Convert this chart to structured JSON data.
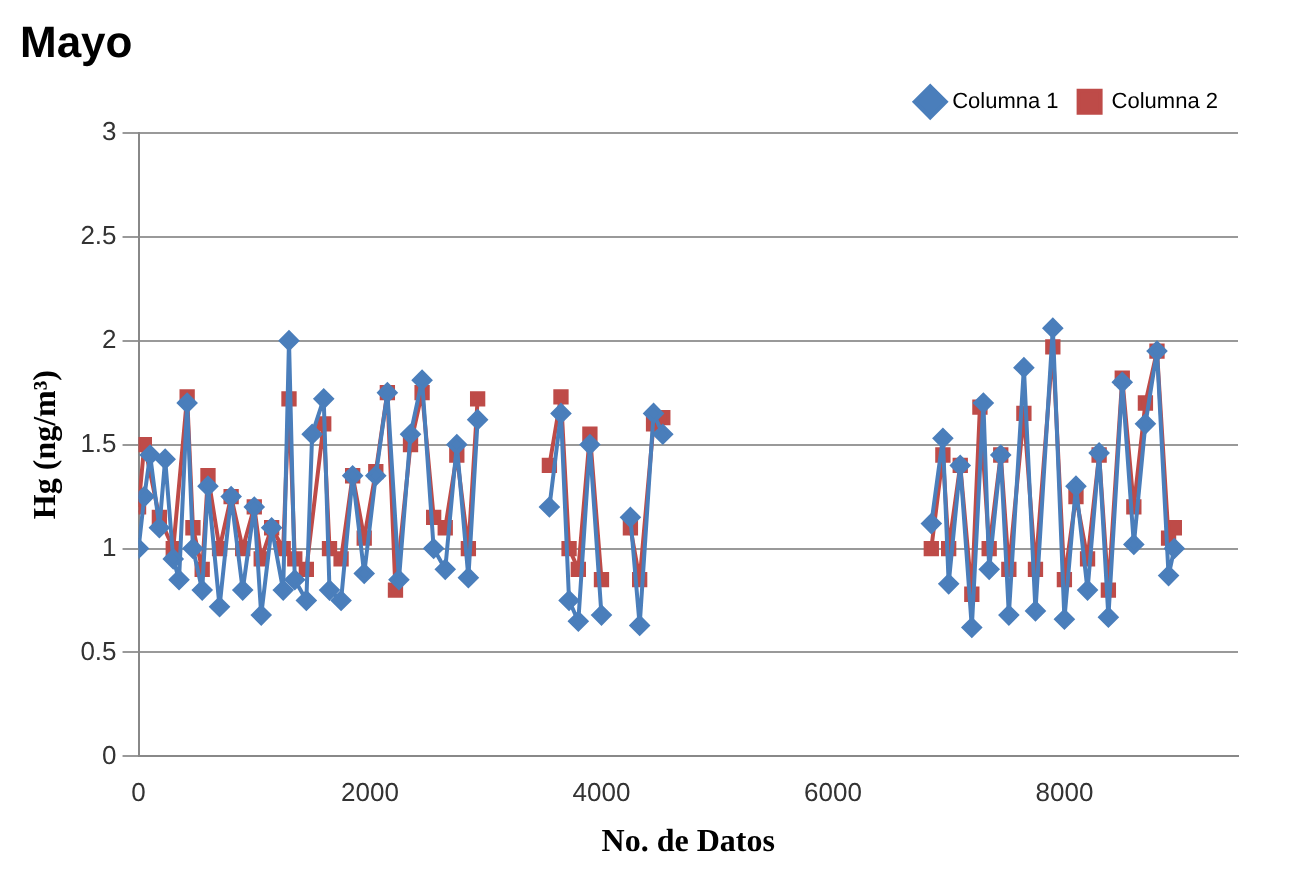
{
  "chart_data": {
    "type": "line",
    "title": "Mayo",
    "xlabel": "No. de Datos",
    "ylabel": "Hg (ng/m³)",
    "xlim": [
      0,
      9500
    ],
    "xticks": [
      0,
      2000,
      4000,
      6000,
      8000
    ],
    "ylim": [
      0,
      3
    ],
    "yticks": [
      0,
      0.5,
      1,
      1.5,
      2,
      2.5,
      3
    ],
    "grid": "y",
    "legend": "top right",
    "line_style": "solid",
    "series": [
      {
        "name": "Columna 1",
        "color": "#4a7ebb",
        "marker": "diamond",
        "x": [
          0,
          50,
          100,
          180,
          230,
          300,
          350,
          420,
          470,
          550,
          600,
          700,
          800,
          900,
          1000,
          1060,
          1150,
          1250,
          1300,
          1350,
          1450,
          1500,
          1600,
          1650,
          1750,
          1850,
          1950,
          2050,
          2150,
          2250,
          2350,
          2450,
          2550,
          2650,
          2750,
          2850,
          2930,
          3200,
          3550,
          3650,
          3720,
          3800,
          3900,
          4000,
          4150,
          4250,
          4330,
          4450,
          4530,
          5700,
          6850,
          6950,
          7000,
          7100,
          7200,
          7300,
          7350,
          7450,
          7520,
          7650,
          7750,
          7900,
          8000,
          8100,
          8200,
          8300,
          8380,
          8500,
          8600,
          8700,
          8800,
          8900,
          8950
        ],
        "values": [
          1.0,
          1.25,
          1.45,
          1.1,
          1.43,
          0.95,
          0.85,
          1.7,
          1.0,
          0.8,
          1.3,
          0.72,
          1.25,
          0.8,
          1.2,
          0.68,
          1.1,
          0.8,
          2.0,
          0.85,
          0.75,
          1.55,
          1.72,
          0.8,
          0.75,
          1.35,
          0.88,
          1.35,
          1.75,
          0.85,
          1.55,
          1.81,
          1.0,
          0.9,
          1.5,
          0.86,
          1.62,
          null,
          1.2,
          1.65,
          0.75,
          0.65,
          1.5,
          0.68,
          null,
          1.15,
          0.63,
          1.65,
          1.55,
          null,
          1.12,
          1.53,
          0.83,
          1.4,
          0.62,
          1.7,
          0.9,
          1.45,
          0.68,
          1.87,
          0.7,
          2.06,
          0.66,
          1.3,
          0.8,
          1.46,
          0.67,
          1.8,
          1.02,
          1.6,
          1.95,
          0.87,
          1.0
        ]
      },
      {
        "name": "Columna 2",
        "color": "#be4b48",
        "marker": "square",
        "x": [
          0,
          50,
          180,
          300,
          420,
          470,
          550,
          600,
          700,
          800,
          900,
          1000,
          1060,
          1150,
          1250,
          1300,
          1350,
          1450,
          1600,
          1650,
          1750,
          1850,
          1950,
          2050,
          2150,
          2220,
          2350,
          2450,
          2550,
          2650,
          2750,
          2850,
          2930,
          3200,
          3550,
          3650,
          3720,
          3800,
          3900,
          4000,
          4150,
          4250,
          4330,
          4450,
          4530,
          5700,
          6850,
          6950,
          7000,
          7100,
          7200,
          7270,
          7350,
          7450,
          7520,
          7650,
          7750,
          7900,
          8000,
          8100,
          8200,
          8300,
          8380,
          8500,
          8600,
          8700,
          8800,
          8900,
          8950
        ],
        "values": [
          1.2,
          1.5,
          1.15,
          1.0,
          1.73,
          1.1,
          0.9,
          1.35,
          1.0,
          1.25,
          1.0,
          1.2,
          0.95,
          1.1,
          1.0,
          1.72,
          0.95,
          0.9,
          1.6,
          1.0,
          0.95,
          1.35,
          1.05,
          1.37,
          1.75,
          0.8,
          1.5,
          1.75,
          1.15,
          1.1,
          1.45,
          1.0,
          1.72,
          null,
          1.4,
          1.73,
          1.0,
          0.9,
          1.55,
          0.85,
          null,
          1.1,
          0.85,
          1.6,
          1.63,
          null,
          1.0,
          1.45,
          1.0,
          1.4,
          0.78,
          1.68,
          1.0,
          1.45,
          0.9,
          1.65,
          0.9,
          1.97,
          0.85,
          1.25,
          0.95,
          1.45,
          0.8,
          1.82,
          1.2,
          1.7,
          1.95,
          1.05,
          1.1
        ]
      }
    ]
  }
}
